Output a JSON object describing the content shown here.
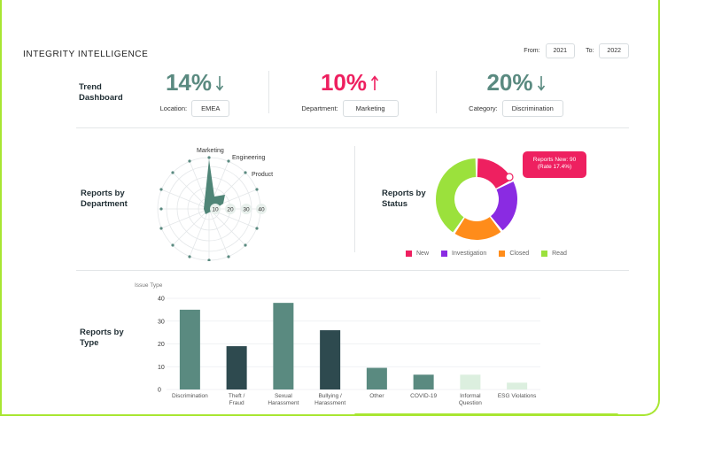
{
  "header": {
    "title": "INTEGRITY INTELLIGENCE",
    "from_label": "From:",
    "from_value": "2021",
    "to_label": "To:",
    "to_value": "2022"
  },
  "icons": {
    "bell": "bell-icon",
    "user": "user-circle-icon"
  },
  "trend": {
    "label": "Trend Dashboard",
    "kpis": [
      {
        "value": "14%",
        "direction": "down",
        "color": "#5a8a80",
        "filter_label": "Location:",
        "filter_value": "EMEA"
      },
      {
        "value": "10%",
        "direction": "up",
        "color": "#ee2060",
        "filter_label": "Department:",
        "filter_value": "Marketing"
      },
      {
        "value": "20%",
        "direction": "down",
        "color": "#5a8a80",
        "filter_label": "Category:",
        "filter_value": "Discrimination"
      }
    ]
  },
  "department": {
    "label": "Reports by Department",
    "axis_labels": [
      "Marketing",
      "Engineering",
      "Product"
    ],
    "ring_labels": [
      "10",
      "20",
      "30",
      "40"
    ]
  },
  "status": {
    "label": "Reports by Status",
    "tooltip_line1": "Reports New: 90",
    "tooltip_line2": "(Rate 17.4%)",
    "legend": [
      {
        "name": "New",
        "color": "#ee2060"
      },
      {
        "name": "Investigation",
        "color": "#8a2be2"
      },
      {
        "name": "Closed",
        "color": "#ff8c1a"
      },
      {
        "name": "Read",
        "color": "#9be13c"
      }
    ]
  },
  "type_chart": {
    "label": "Reports by Type",
    "y_title": "Issue Type"
  },
  "chart_data": [
    {
      "type": "bar",
      "ylabel": "Issue Type",
      "ylim": [
        0,
        40
      ],
      "yticks": [
        "0",
        "10",
        "20",
        "30",
        "40"
      ],
      "categories": [
        "Discrimination",
        "Theft / Fraud",
        "Sexual Harassment",
        "Bullying / Harassment",
        "Other",
        "COVID-19",
        "Informal Question",
        "ESG Violations"
      ],
      "category_lines": [
        [
          "Discrimination"
        ],
        [
          "Theft /",
          "Fraud"
        ],
        [
          "Sexual",
          "Harassment"
        ],
        [
          "Bullying /",
          "Harassment"
        ],
        [
          "Other"
        ],
        [
          "COVID-19"
        ],
        [
          "Informal",
          "Question"
        ],
        [
          "ESG Violations"
        ]
      ],
      "values": [
        35,
        19,
        38,
        26,
        9.5,
        6.5,
        6.5,
        3
      ],
      "colors": [
        "#5a8a80",
        "#2e4a4f",
        "#5a8a80",
        "#2e4a4f",
        "#5a8a80",
        "#5a8a80",
        "#dcefdf",
        "#dcefdf"
      ]
    },
    {
      "type": "pie",
      "categories": [
        "New",
        "Investigation",
        "Closed",
        "Read"
      ],
      "values": [
        17.4,
        22,
        20,
        40.6
      ],
      "colors": [
        "#ee2060",
        "#8a2be2",
        "#ff8c1a",
        "#9be13c"
      ]
    }
  ]
}
